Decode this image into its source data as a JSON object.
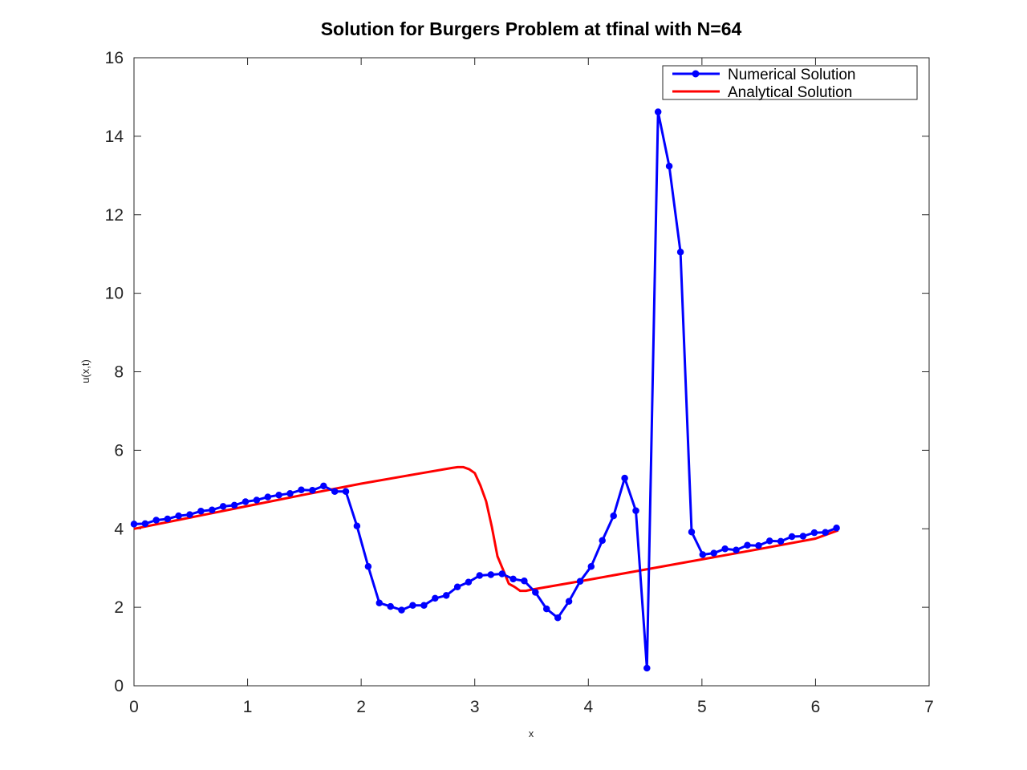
{
  "chart_data": {
    "type": "line",
    "title": "Solution for Burgers Problem at tfinal with N=64",
    "xlabel": "x",
    "ylabel": "u(x,t)",
    "xlim": [
      0,
      7
    ],
    "ylim": [
      0,
      16
    ],
    "xticks": [
      0,
      1,
      2,
      3,
      4,
      5,
      6,
      7
    ],
    "yticks": [
      0,
      2,
      4,
      6,
      8,
      10,
      12,
      14,
      16
    ],
    "grid": false,
    "legend_position": "top-right",
    "series": [
      {
        "name": "Numerical Solution",
        "color": "#0000ff",
        "marker": "circle",
        "x": [
          0.0,
          0.098,
          0.196,
          0.295,
          0.393,
          0.491,
          0.589,
          0.687,
          0.785,
          0.884,
          0.982,
          1.08,
          1.178,
          1.276,
          1.374,
          1.473,
          1.571,
          1.669,
          1.767,
          1.865,
          1.963,
          2.062,
          2.16,
          2.258,
          2.356,
          2.454,
          2.553,
          2.651,
          2.749,
          2.847,
          2.945,
          3.043,
          3.142,
          3.24,
          3.338,
          3.436,
          3.534,
          3.632,
          3.731,
          3.829,
          3.927,
          4.025,
          4.123,
          4.222,
          4.32,
          4.418,
          4.516,
          4.614,
          4.712,
          4.811,
          4.909,
          5.007,
          5.105,
          5.203,
          5.301,
          5.4,
          5.498,
          5.596,
          5.694,
          5.792,
          5.89,
          5.989,
          6.087,
          6.185
        ],
        "y": [
          4.12,
          4.13,
          4.22,
          4.25,
          4.33,
          4.36,
          4.45,
          4.48,
          4.57,
          4.6,
          4.69,
          4.73,
          4.81,
          4.86,
          4.9,
          4.99,
          4.98,
          5.09,
          4.95,
          4.95,
          4.07,
          3.04,
          2.11,
          2.02,
          1.93,
          2.05,
          2.05,
          2.23,
          2.3,
          2.52,
          2.64,
          2.81,
          2.83,
          2.85,
          2.72,
          2.67,
          2.38,
          1.96,
          1.73,
          2.15,
          2.66,
          3.04,
          3.7,
          4.33,
          5.29,
          4.46,
          0.45,
          14.62,
          13.24,
          11.05,
          3.92,
          3.34,
          3.38,
          3.49,
          3.46,
          3.58,
          3.57,
          3.69,
          3.68,
          3.8,
          3.81,
          3.9,
          3.91,
          4.02
        ]
      },
      {
        "name": "Analytical Solution",
        "color": "#ff0000",
        "x": [
          0.0,
          0.5,
          1.0,
          1.5,
          2.0,
          2.5,
          2.8,
          2.85,
          2.9,
          2.95,
          3.0,
          3.05,
          3.1,
          3.15,
          3.2,
          3.25,
          3.3,
          3.35,
          3.4,
          3.45,
          3.5,
          4.0,
          4.5,
          5.0,
          5.5,
          6.0,
          6.2
        ],
        "y": [
          4.0,
          4.29,
          4.58,
          4.87,
          5.15,
          5.4,
          5.55,
          5.57,
          5.57,
          5.52,
          5.42,
          5.1,
          4.7,
          4.05,
          3.3,
          2.95,
          2.6,
          2.52,
          2.42,
          2.42,
          2.45,
          2.7,
          2.96,
          3.22,
          3.48,
          3.75,
          3.96
        ]
      }
    ]
  }
}
